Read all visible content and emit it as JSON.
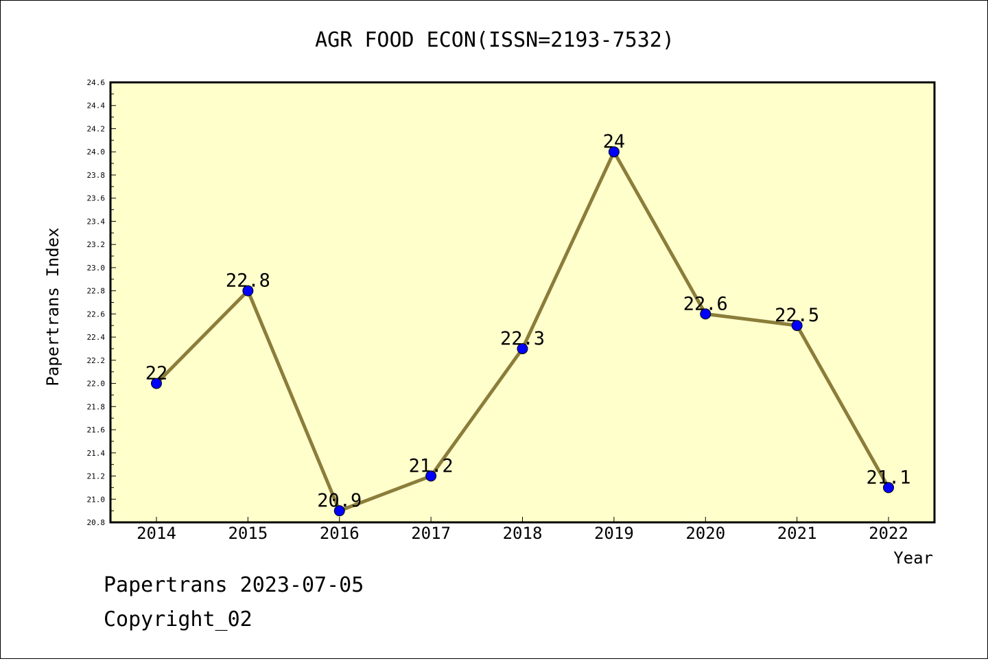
{
  "chart_data": {
    "type": "line",
    "title": "AGR FOOD ECON(ISSN=2193-7532)",
    "xlabel": "Year",
    "ylabel": "Papertrans Index",
    "categories": [
      "2014",
      "2015",
      "2016",
      "2017",
      "2018",
      "2019",
      "2020",
      "2021",
      "2022"
    ],
    "series": [
      {
        "values": [
          22,
          22.8,
          20.9,
          21.2,
          22.3,
          24,
          22.6,
          22.5,
          21.1
        ],
        "labels": [
          "22",
          "22.8",
          "20.9",
          "21.2",
          "22.3",
          "24",
          "22.6",
          "22.5",
          "21.1"
        ]
      }
    ],
    "ylim": [
      20.8,
      24.6
    ],
    "yticks": [
      "20.8",
      "21.0",
      "21.2",
      "21.4",
      "21.6",
      "21.8",
      "22.0",
      "22.2",
      "22.4",
      "22.6",
      "22.8",
      "23.0",
      "23.2",
      "23.4",
      "23.6",
      "23.8",
      "24.0",
      "24.2",
      "24.4",
      "24.6"
    ],
    "grid": false,
    "colors": {
      "plot_background": "#ffffcc",
      "line": "#8b7d3a",
      "marker": "#0000ff"
    }
  },
  "footer": {
    "line1": "Papertrans 2023-07-05",
    "line2": "Copyright_02"
  }
}
